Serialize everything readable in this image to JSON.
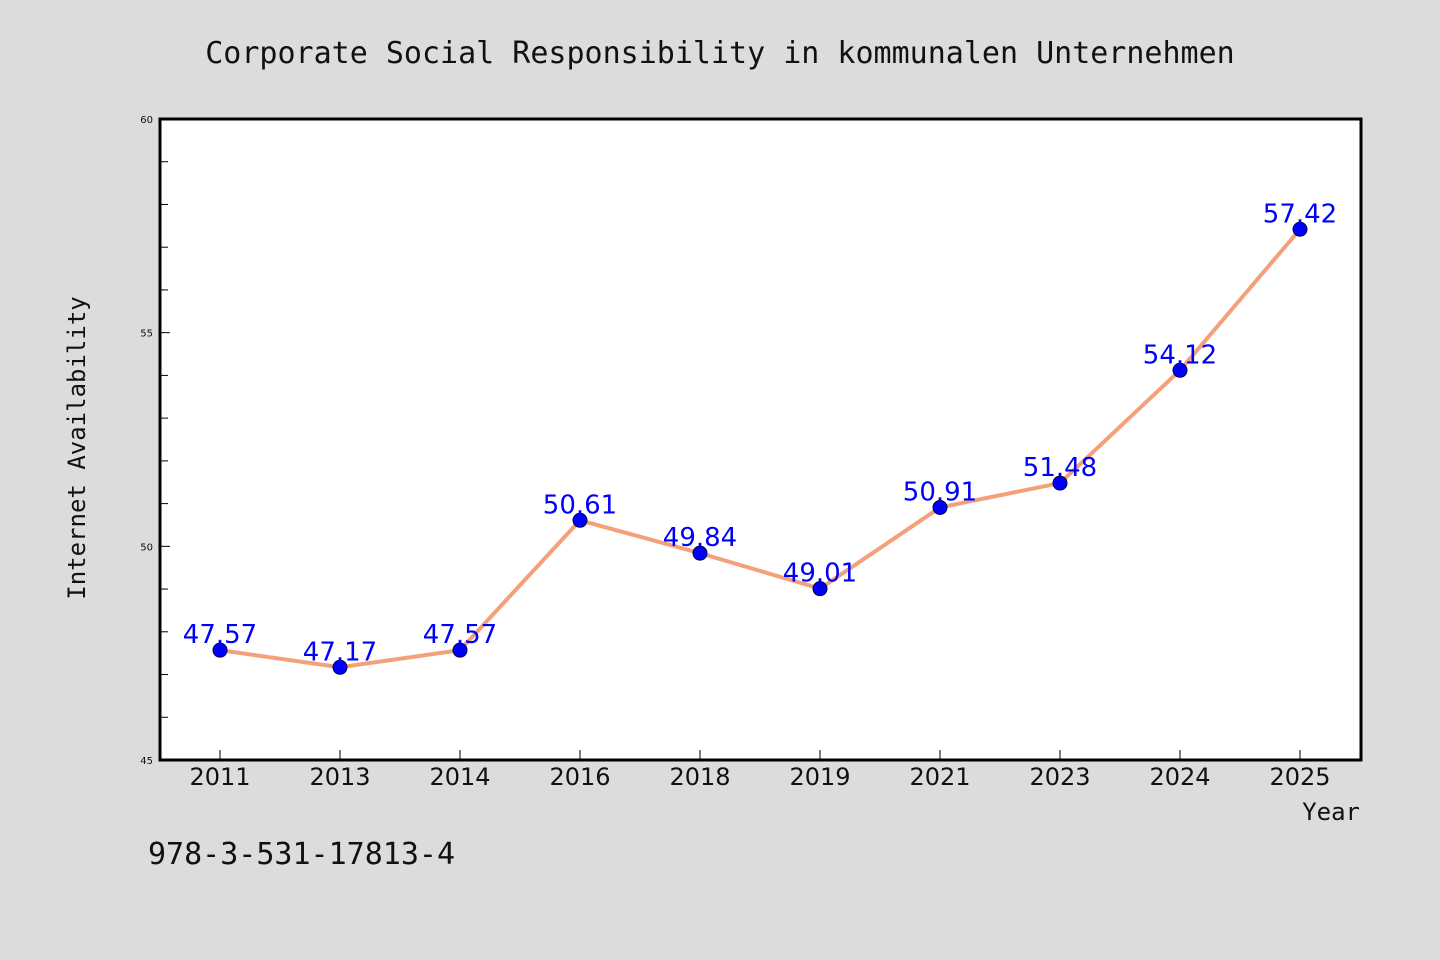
{
  "chart_data": {
    "type": "line",
    "title": "Corporate Social Responsibility in kommunalen Unternehmen",
    "xlabel": "Year",
    "ylabel": "Internet Availability",
    "categories": [
      "2011",
      "2013",
      "2014",
      "2016",
      "2018",
      "2019",
      "2021",
      "2023",
      "2024",
      "2025"
    ],
    "series": [
      {
        "name": "",
        "values": [
          47.57,
          47.17,
          47.57,
          50.61,
          49.84,
          49.01,
          50.91,
          51.48,
          54.12,
          57.42
        ],
        "line_color": "#f4a07a",
        "marker_color": "#0000ff"
      }
    ],
    "data_labels": [
      "47.57",
      "47.17",
      "47.57",
      "50.61",
      "49.84",
      "49.01",
      "50.91",
      "51.48",
      "54.12",
      "57.42"
    ],
    "ylim": [
      45,
      60
    ],
    "yticks": [
      45,
      50,
      55,
      60
    ],
    "y_minor_step": 1,
    "grid": false,
    "legend": "none",
    "label_color": "#0000ff",
    "background_color": "#dcdcdc",
    "plot_background": "#ffffff"
  },
  "footnote": "978-3-531-17813-4"
}
